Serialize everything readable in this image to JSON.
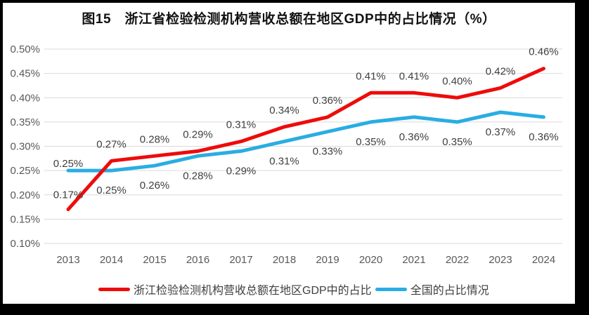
{
  "chart_data": {
    "type": "line",
    "title": "图15　浙江省检验检测机构营收总额在地区GDP中的占比情况（%）",
    "x": [
      "2013",
      "2014",
      "2015",
      "2016",
      "2017",
      "2018",
      "2019",
      "2020",
      "2021",
      "2022",
      "2023",
      "2024"
    ],
    "series": [
      {
        "name": "浙江检验检测机构营收总额在地区GDP中的占比",
        "color": "#ee0b0b",
        "values": [
          0.17,
          0.27,
          0.28,
          0.29,
          0.31,
          0.34,
          0.36,
          0.41,
          0.41,
          0.4,
          0.42,
          0.46
        ],
        "labels": [
          "0.17%",
          "0.27%",
          "0.28%",
          "0.29%",
          "0.31%",
          "0.34%",
          "0.36%",
          "0.41%",
          "0.41%",
          "0.40%",
          "0.42%",
          "0.46%"
        ],
        "label_side": "above",
        "label_offset": -24,
        "label_offset_overrides": {
          "0": -21
        }
      },
      {
        "name": "全国的占比情况",
        "color": "#29ade3",
        "values": [
          0.25,
          0.25,
          0.26,
          0.28,
          0.29,
          0.31,
          0.33,
          0.35,
          0.36,
          0.35,
          0.37,
          0.36
        ],
        "labels": [
          "0.25%",
          "0.25%",
          "0.26%",
          "0.28%",
          "0.29%",
          "0.31%",
          "0.33%",
          "0.35%",
          "0.36%",
          "0.35%",
          "0.37%",
          "0.36%"
        ],
        "label_side": "below",
        "label_offset": 28,
        "label_offset_overrides": {
          "0": -10
        }
      }
    ],
    "ylim": [
      0.1,
      0.5
    ],
    "ytick_step": 0.05,
    "ytick_labels_top_to_bottom": [
      "0.50%",
      "0.45%",
      "0.40%",
      "0.35%",
      "0.30%",
      "0.25%",
      "0.20%",
      "0.15%",
      "0.10%"
    ],
    "grid": "horizontal",
    "gridline_color": "#d9d9d9",
    "axis_text_color": "#595959",
    "label_text_color": "#3f3f3f",
    "legend_position": "bottom",
    "frame_border_color": "#000000",
    "background_color": "#ffffff"
  }
}
